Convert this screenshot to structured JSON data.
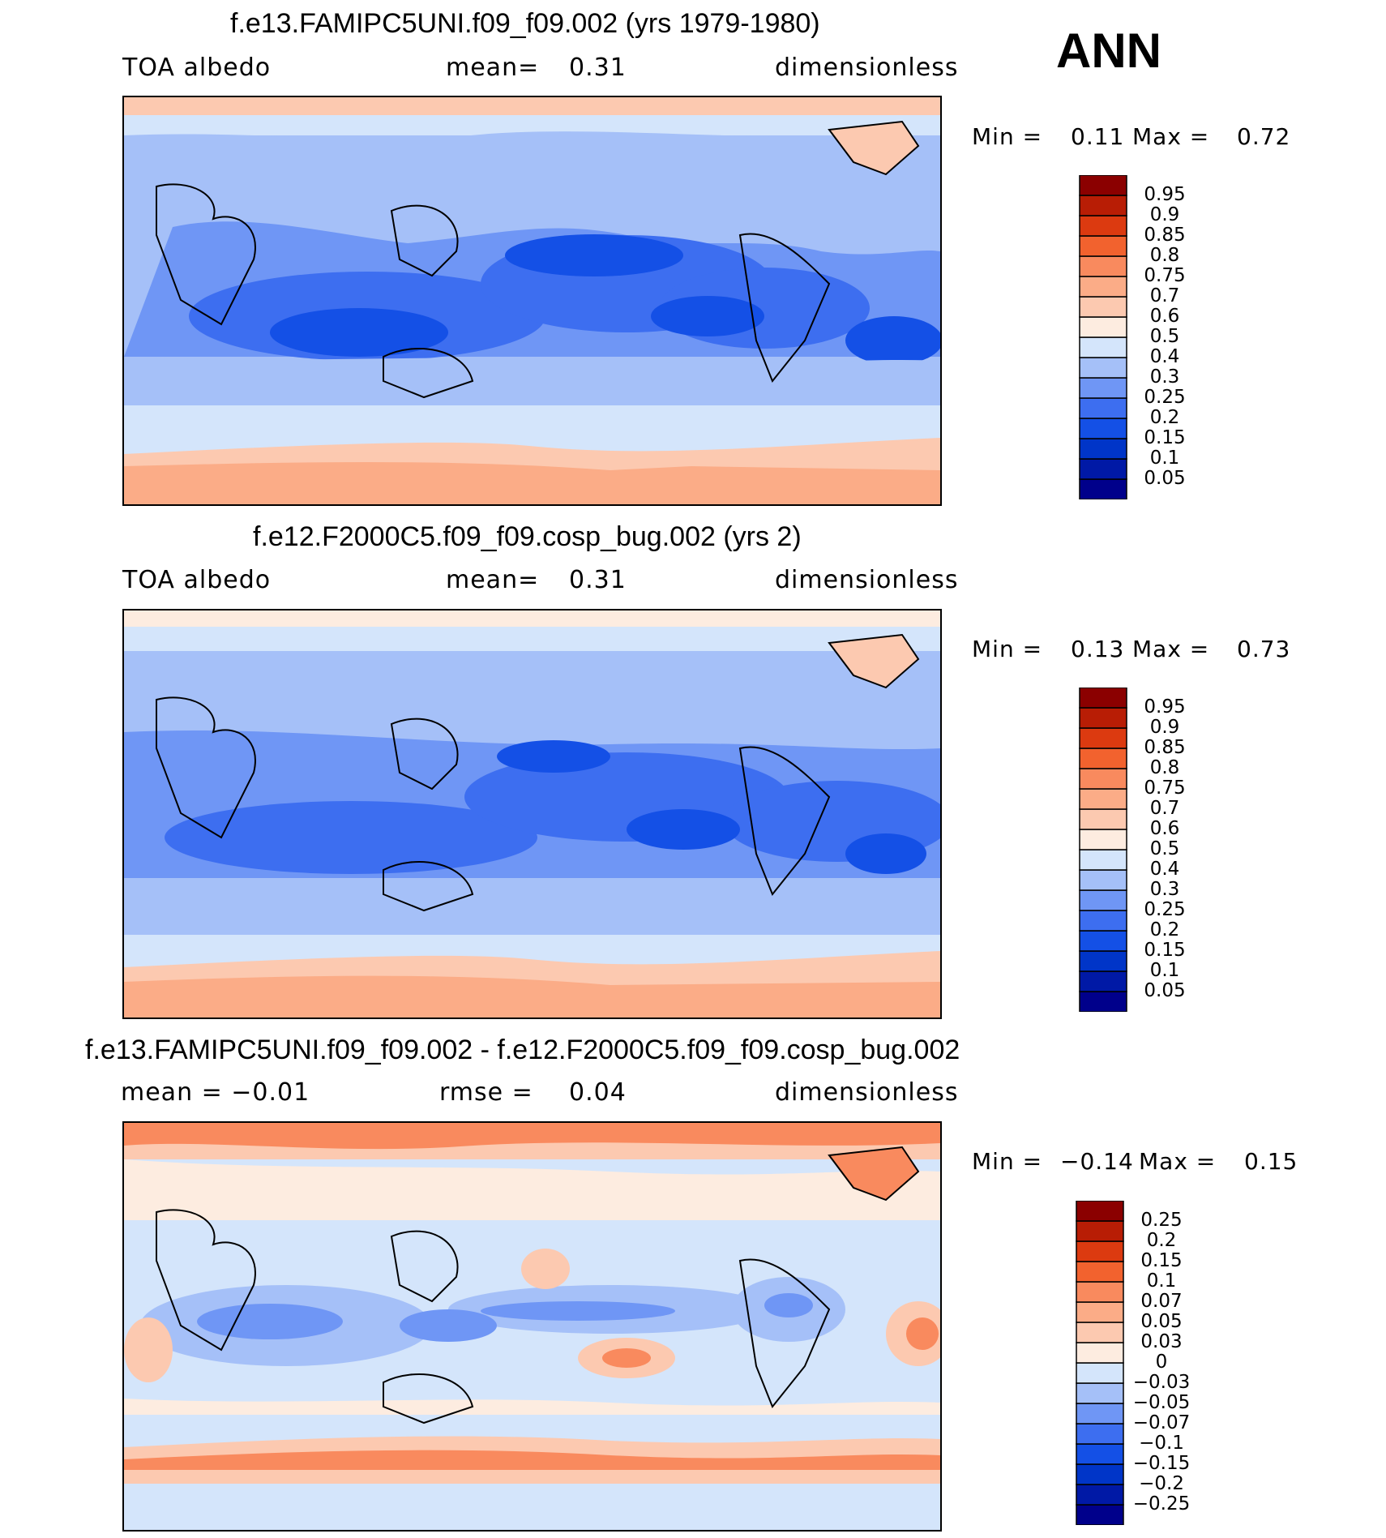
{
  "season_label": "ANN",
  "panels": [
    {
      "title": "f.e13.FAMIPC5UNI.f09_f09.002 (yrs 1979-1980)",
      "left_label": "TOA  albedo",
      "mid_label": "mean=",
      "mid_value": "0.31",
      "right_label": "dimensionless",
      "min_label": "Min  =",
      "min_value": "0.11",
      "max_label": "Max  =",
      "max_value": "0.72",
      "colorbar_levels": [
        "0.95",
        "0.9",
        "0.85",
        "0.8",
        "0.75",
        "0.7",
        "0.6",
        "0.5",
        "0.4",
        "0.3",
        "0.25",
        "0.2",
        "0.15",
        "0.1",
        "0.05"
      ]
    },
    {
      "title": "f.e12.F2000C5.f09_f09.cosp_bug.002 (yrs 2)",
      "left_label": "TOA  albedo",
      "mid_label": "mean=",
      "mid_value": "0.31",
      "right_label": "dimensionless",
      "min_label": "Min  =",
      "min_value": "0.13",
      "max_label": "Max  =",
      "max_value": "0.73",
      "colorbar_levels": [
        "0.95",
        "0.9",
        "0.85",
        "0.8",
        "0.75",
        "0.7",
        "0.6",
        "0.5",
        "0.4",
        "0.3",
        "0.25",
        "0.2",
        "0.15",
        "0.1",
        "0.05"
      ]
    },
    {
      "title": "f.e13.FAMIPC5UNI.f09_f09.002 - f.e12.F2000C5.f09_f09.cosp_bug.002",
      "left_label": "mean  =   −0.01",
      "mid_label": "rmse  =",
      "mid_value": "0.04",
      "right_label": "dimensionless",
      "min_label": "Min  =",
      "min_value": "−0.14",
      "max_label": "Max  =",
      "max_value": "0.15",
      "colorbar_levels": [
        "0.25",
        "0.2",
        "0.15",
        "0.1",
        "0.07",
        "0.05",
        "0.03",
        "0",
        "−0.03",
        "−0.05",
        "−0.07",
        "−0.1",
        "−0.15",
        "−0.2",
        "−0.25"
      ]
    }
  ],
  "colors": {
    "abs_scale": [
      "#00008b",
      "#0019a6",
      "#0035c8",
      "#1450e6",
      "#3d6ef0",
      "#6f96f5",
      "#a5c0f8",
      "#d4e5fb",
      "#fdece0",
      "#fcc9b0",
      "#fbac87",
      "#f98a5e",
      "#f2622e",
      "#dc3a10",
      "#b81d05",
      "#8b0000"
    ],
    "diff_scale": [
      "#00008b",
      "#0019a6",
      "#0035c8",
      "#1450e6",
      "#3d6ef0",
      "#6f96f5",
      "#a5c0f8",
      "#d4e5fb",
      "#fdece0",
      "#fcc9b0",
      "#fbac87",
      "#f98a5e",
      "#f2622e",
      "#dc3a10",
      "#b81d05",
      "#8b0000"
    ]
  }
}
